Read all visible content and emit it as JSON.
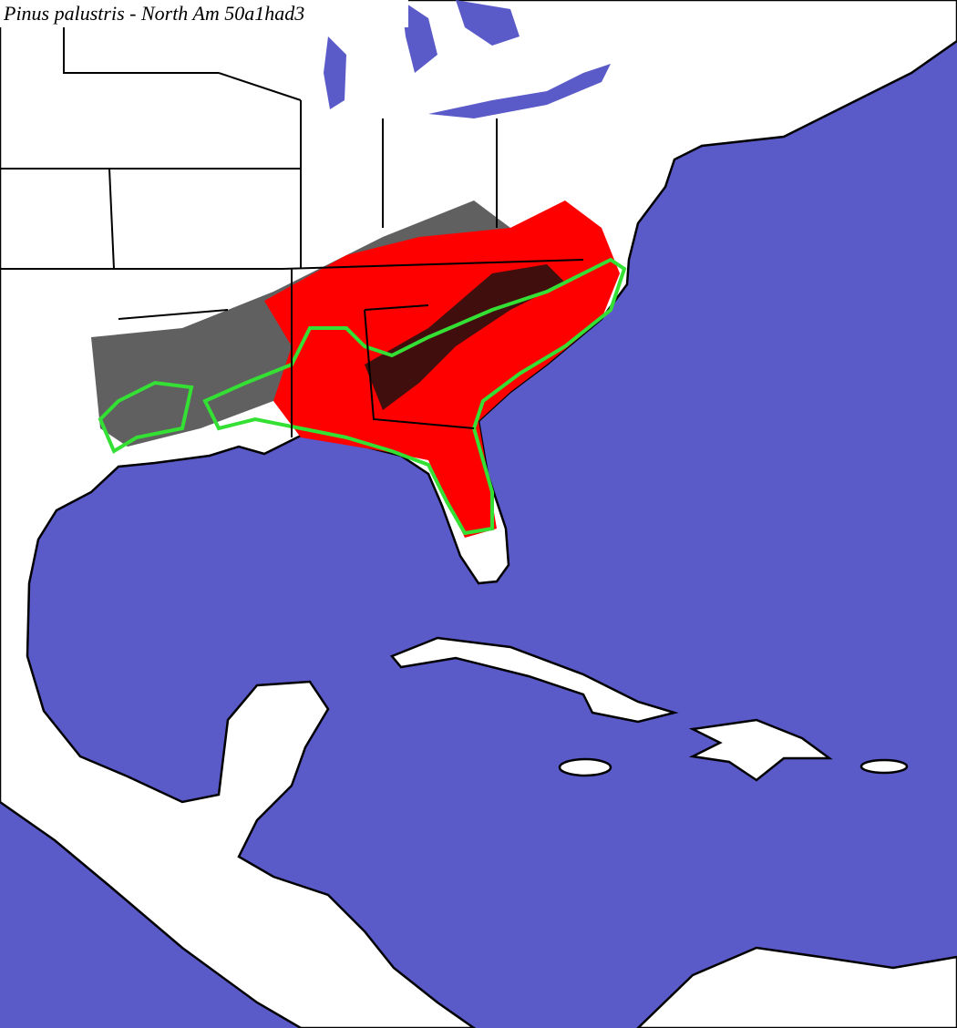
{
  "title": "Pinus palustris - North Am 50a1had3"
}
